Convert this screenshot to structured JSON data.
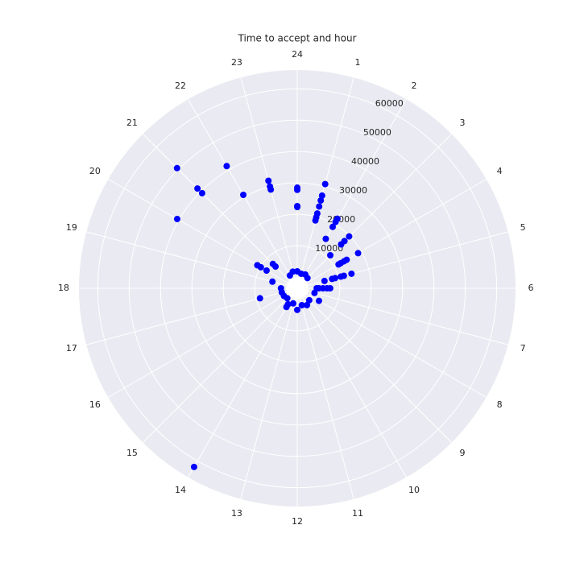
{
  "chart_data": {
    "type": "polar-scatter",
    "title": "Time to accept and hour",
    "series": [
      {
        "color": "#0000ff",
        "x": [
          0,
          0,
          0,
          0,
          0,
          1,
          1,
          1,
          1,
          1,
          1,
          1,
          2,
          2,
          2,
          2,
          3,
          3,
          3,
          3,
          4,
          4,
          4,
          4,
          4,
          5,
          5,
          5,
          5,
          5,
          5,
          6,
          6,
          6,
          6,
          6,
          7,
          8,
          10,
          12,
          14,
          14,
          14,
          17,
          17,
          19,
          20,
          20,
          20,
          20,
          21,
          21,
          21,
          21,
          21,
          22,
          22,
          23,
          23,
          23,
          1,
          2,
          3,
          9,
          11,
          13,
          15,
          16,
          18,
          22,
          23
        ],
        "y": [
          28500,
          27800,
          22600,
          22300,
          1800,
          30800,
          27000,
          25400,
          23400,
          21100,
          19800,
          18800,
          22000,
          20800,
          19000,
          14600,
          19800,
          17700,
          16200,
          11300,
          18800,
          14600,
          13600,
          12400,
          11600,
          14300,
          11800,
          10800,
          8900,
          7900,
          5400,
          6900,
          5900,
          4600,
          3300,
          2600,
          2100,
          4400,
          2600,
          3300,
          62200,
          2300,
          3300,
          8700,
          1500,
          4600,
          7700,
          11100,
          9800,
          40600,
          50600,
          41400,
          39300,
          6200,
          7400,
          41400,
          30800,
          31900,
          30000,
          29000,
          1200,
          1500,
          1000,
          1800,
          2000,
          1400,
          900,
          1300,
          1600,
          1100,
          1900
        ]
      }
    ],
    "xlim": [
      0,
      24
    ],
    "xticks": [
      {
        "value": 0,
        "label": "24"
      },
      1,
      2,
      3,
      4,
      5,
      6,
      7,
      8,
      9,
      10,
      11,
      12,
      13,
      14,
      15,
      16,
      17,
      18,
      19,
      20,
      21,
      22,
      23
    ],
    "ylim": [
      0,
      66000
    ],
    "yticks": [
      10000,
      20000,
      30000,
      40000,
      50000,
      60000
    ],
    "grid": true
  }
}
